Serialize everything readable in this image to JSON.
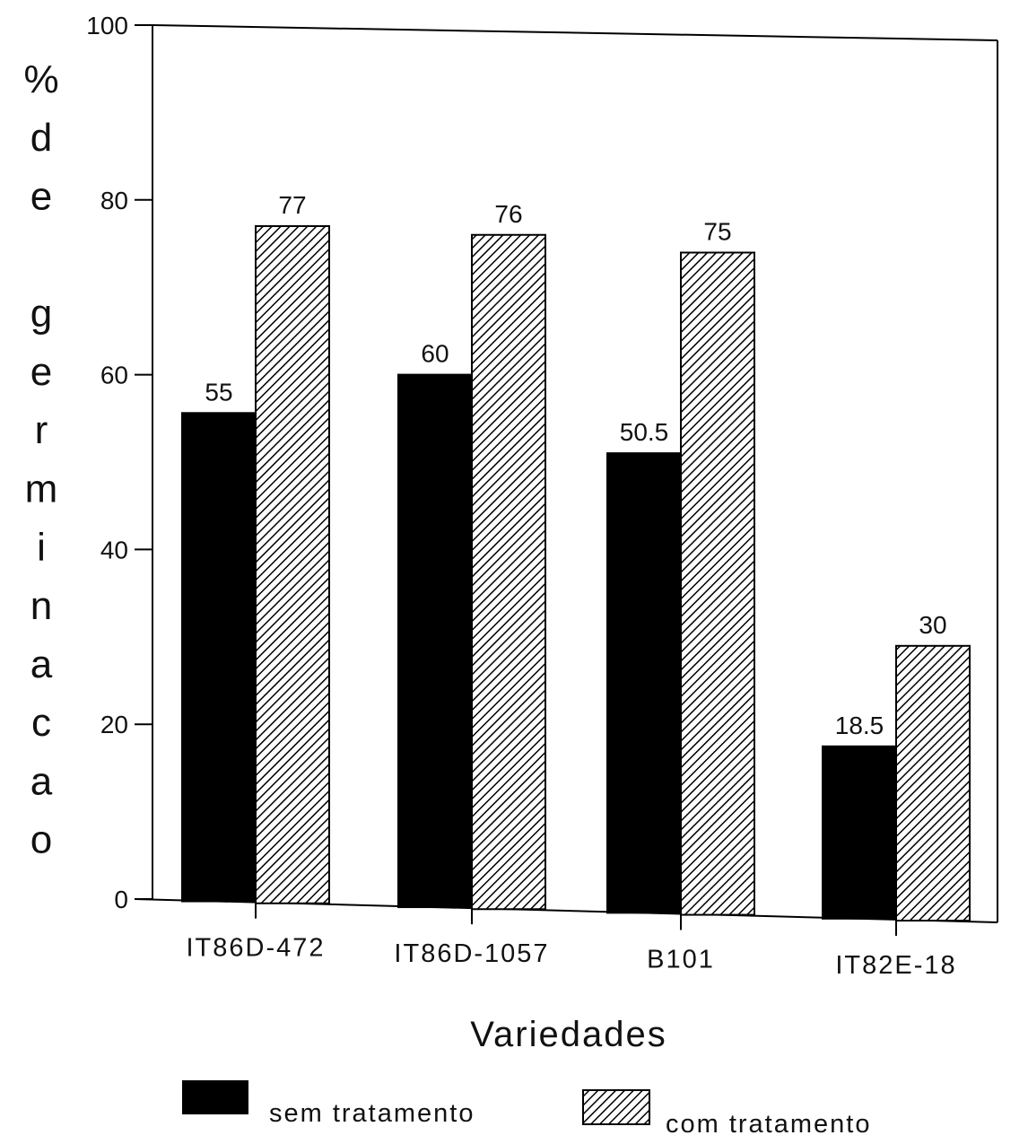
{
  "chart_data": {
    "type": "bar",
    "categories": [
      "IT86D-472",
      "IT86D-1057",
      "B101",
      "IT82E-18"
    ],
    "series": [
      {
        "name": "sem tratamento",
        "values": [
          55,
          60,
          50.5,
          18.5
        ],
        "value_labels": [
          "55",
          "60",
          "50.5",
          "18.5"
        ],
        "color": "#000000",
        "pattern": "solid"
      },
      {
        "name": "com tratamento",
        "values": [
          77,
          76,
          75,
          30
        ],
        "value_labels": [
          "77",
          "76",
          "75",
          "30"
        ],
        "color": "#000000",
        "pattern": "diagonal-hatch"
      }
    ],
    "xlabel": "Variedades",
    "ylabel": "% de germinacao",
    "ylabel_lines": [
      "%",
      "d",
      "e",
      "",
      "g",
      "e",
      "r",
      "m",
      "i",
      "n",
      "a",
      "c",
      "a",
      "o"
    ],
    "ylim": [
      0,
      100
    ],
    "yticks": [
      0,
      20,
      40,
      60,
      80,
      100
    ],
    "grid": false,
    "legend_position": "bottom"
  }
}
